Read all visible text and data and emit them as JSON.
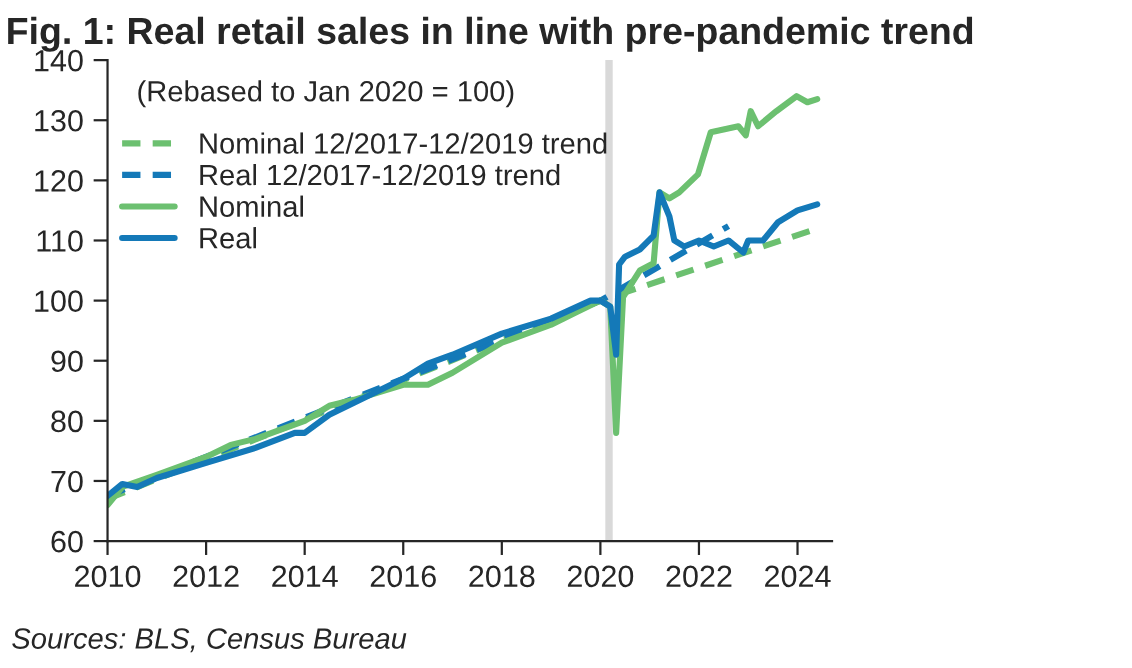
{
  "chart_data": {
    "type": "line",
    "title": "Fig. 1: Real retail sales in line with pre-pandemic trend",
    "subtitle": "(Rebased to Jan 2020 = 100)",
    "annotations": [
      "Sources: BLS, Census Bureau"
    ],
    "xlim": [
      2010,
      2024.7
    ],
    "xticks": [
      2010,
      2012,
      2014,
      2016,
      2018,
      2020,
      2022,
      2024
    ],
    "ylim": [
      60,
      140
    ],
    "yticks": [
      60,
      70,
      80,
      90,
      100,
      110,
      120,
      130,
      140
    ],
    "grid": false,
    "legend": "top left",
    "bands": [
      {
        "axis": "x",
        "from": 2020.1,
        "to": 2020.25,
        "color": "#d9d9d9"
      }
    ],
    "series": [
      {
        "name": "Nominal 12/2017-12/2019 trend",
        "color": "#6cc070",
        "line_style": "dashed",
        "x": [
          2010,
          2020.0,
          2024.4
        ],
        "values": [
          67,
          100,
          112
        ]
      },
      {
        "name": "Real 12/2017-12/2019 trend",
        "color": "#1479b8",
        "line_style": "dashed",
        "x": [
          2010,
          2020.0,
          2022.6
        ],
        "values": [
          67.5,
          100,
          112.4
        ]
      },
      {
        "name": "Nominal",
        "color": "#6cc070",
        "line_style": "solid",
        "x": [
          2010,
          2010.3,
          2011,
          2012,
          2012.5,
          2013,
          2014,
          2014.5,
          2015,
          2016,
          2016.5,
          2017,
          2018,
          2019,
          2019.5,
          2020.0,
          2020.2,
          2020.32,
          2020.46,
          2020.8,
          2021.08,
          2021.2,
          2021.4,
          2021.6,
          2021.98,
          2022.24,
          2022.8,
          2022.95,
          2023.05,
          2023.2,
          2023.57,
          2023.98,
          2024.2,
          2024.4
        ],
        "values": [
          66,
          69,
          71,
          74,
          76,
          77,
          80,
          82.5,
          83.5,
          86,
          86,
          88,
          93,
          96,
          98,
          100,
          99,
          78,
          100.6,
          105,
          106.2,
          118,
          117,
          118,
          121,
          128,
          129,
          127.5,
          131.5,
          129,
          131.5,
          134,
          133,
          133.5
        ]
      },
      {
        "name": "Real",
        "color": "#1479b8",
        "line_style": "solid",
        "x": [
          2010,
          2010.3,
          2010.6,
          2011,
          2012,
          2013,
          2013.8,
          2014,
          2014.5,
          2015,
          2016,
          2016.5,
          2017,
          2018,
          2019,
          2019.8,
          2020.0,
          2020.2,
          2020.32,
          2020.38,
          2020.5,
          2020.8,
          2021.08,
          2021.2,
          2021.4,
          2021.5,
          2021.7,
          2022.0,
          2022.3,
          2022.6,
          2022.9,
          2023.0,
          2023.3,
          2023.6,
          2024.0,
          2024.4
        ],
        "values": [
          67.5,
          69.5,
          69,
          70.5,
          73,
          75.5,
          78,
          78,
          81,
          83,
          87,
          89.5,
          91,
          94.5,
          97,
          100,
          100,
          99,
          91,
          106,
          107.3,
          108.5,
          110.8,
          118,
          114,
          110,
          109,
          110,
          109,
          110,
          108,
          110,
          110,
          113,
          115,
          116
        ]
      }
    ]
  }
}
